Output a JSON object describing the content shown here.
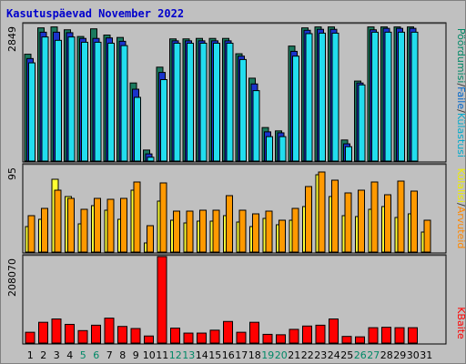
{
  "title": "Kasutuspäevad November 2022",
  "legend": {
    "top": [
      {
        "text": "Pöördumisi",
        "color": "#008866"
      },
      {
        "text": "/",
        "color": "#333333"
      },
      {
        "text": "Faile",
        "color": "#0066cc"
      },
      {
        "text": "/",
        "color": "#333333"
      },
      {
        "text": "Külastusi",
        "color": "#00aacc"
      }
    ],
    "middle": [
      {
        "text": "Külalisi",
        "color": "#eeee00"
      },
      {
        "text": "/",
        "color": "#333333"
      },
      {
        "text": "Arvuteid",
        "color": "#ff8800"
      }
    ],
    "bottom": [
      {
        "text": "KBaite",
        "color": "#ff0000"
      }
    ]
  },
  "colors": {
    "hits": "#1a7a5e",
    "files": "#1a33cc",
    "visits": "#22ddee",
    "sites": "#ff9900",
    "visitors": "#ffff33",
    "kbytes": "#ff0000",
    "weekday_label": "#000000",
    "weekend_label": "#008866"
  },
  "chart_data": [
    {
      "type": "bar",
      "name": "Pöördumisi / Faile / Külastusi",
      "ymax_label": "2849",
      "ymax": 2849,
      "categories": [
        "1",
        "2",
        "3",
        "4",
        "5",
        "6",
        "7",
        "8",
        "9",
        "10",
        "11",
        "12",
        "13",
        "14",
        "15",
        "16",
        "17",
        "18",
        "19",
        "20",
        "21",
        "22",
        "23",
        "24",
        "25",
        "26",
        "27",
        "28",
        "29",
        "30",
        "31"
      ],
      "weekend": [
        false,
        false,
        false,
        false,
        true,
        true,
        false,
        false,
        false,
        false,
        false,
        true,
        true,
        false,
        false,
        false,
        false,
        false,
        true,
        true,
        false,
        false,
        false,
        false,
        false,
        true,
        true,
        false,
        false,
        false,
        false
      ],
      "series": [
        {
          "name": "Pöördumisi",
          "values": [
            2230,
            2780,
            2800,
            2740,
            2600,
            2760,
            2630,
            2580,
            1630,
            230,
            1960,
            2550,
            2550,
            2560,
            2560,
            2560,
            2240,
            1730,
            700,
            630,
            2400,
            2780,
            2800,
            2800,
            440,
            1670,
            2800,
            2800,
            2800,
            2800,
            null
          ]
        },
        {
          "name": "Faile",
          "values": [
            2140,
            2690,
            2690,
            2680,
            2560,
            2560,
            2570,
            2500,
            1500,
            150,
            1850,
            2510,
            2510,
            2510,
            2510,
            2510,
            2190,
            1610,
            610,
            590,
            2290,
            2730,
            2750,
            2750,
            360,
            1630,
            2740,
            2770,
            2770,
            2770,
            null
          ]
        },
        {
          "name": "Külastusi",
          "values": [
            2050,
            2590,
            2520,
            2590,
            2480,
            2480,
            2460,
            2410,
            1330,
            80,
            1700,
            2460,
            2460,
            2460,
            2460,
            2460,
            2120,
            1470,
            510,
            510,
            2190,
            2660,
            2670,
            2670,
            300,
            1590,
            2690,
            2690,
            2690,
            2690,
            null
          ]
        }
      ]
    },
    {
      "type": "bar",
      "name": "Külalisi / Arvuteid",
      "ymax_label": "95",
      "ymax": 95,
      "categories": [
        "1",
        "2",
        "3",
        "4",
        "5",
        "6",
        "7",
        "8",
        "9",
        "10",
        "11",
        "12",
        "13",
        "14",
        "15",
        "16",
        "17",
        "18",
        "19",
        "20",
        "21",
        "22",
        "23",
        "24",
        "25",
        "26",
        "27",
        "28",
        "29",
        "30",
        "31"
      ],
      "series": [
        {
          "name": "Arvuteid",
          "values": [
            40,
            48,
            68,
            59,
            47,
            59,
            58,
            59,
            77,
            29,
            76,
            45,
            45,
            46,
            46,
            62,
            46,
            42,
            45,
            35,
            48,
            72,
            88,
            79,
            65,
            68,
            77,
            63,
            78,
            67,
            35
          ]
        },
        {
          "name": "Külalisi",
          "values": [
            28,
            36,
            80,
            61,
            31,
            51,
            46,
            36,
            68,
            10,
            56,
            35,
            32,
            34,
            34,
            40,
            33,
            28,
            37,
            30,
            35,
            50,
            85,
            61,
            40,
            39,
            47,
            50,
            38,
            42,
            22
          ]
        }
      ]
    },
    {
      "type": "bar",
      "name": "KBaite",
      "ymax_label": "208070",
      "ymax": 208070,
      "categories": [
        "1",
        "2",
        "3",
        "4",
        "5",
        "6",
        "7",
        "8",
        "9",
        "10",
        "11",
        "12",
        "13",
        "14",
        "15",
        "16",
        "17",
        "18",
        "19",
        "20",
        "21",
        "22",
        "23",
        "24",
        "25",
        "26",
        "27",
        "28",
        "29",
        "30",
        "31"
      ],
      "series": [
        {
          "name": "KBaite",
          "values": [
            26000,
            50000,
            58000,
            45000,
            30000,
            43000,
            60000,
            40000,
            35000,
            17000,
            208070,
            36000,
            24000,
            24000,
            31000,
            52000,
            26000,
            50000,
            21000,
            20000,
            33000,
            41000,
            43000,
            58000,
            16000,
            15000,
            37000,
            38000,
            37000,
            37000,
            null
          ]
        }
      ]
    }
  ]
}
